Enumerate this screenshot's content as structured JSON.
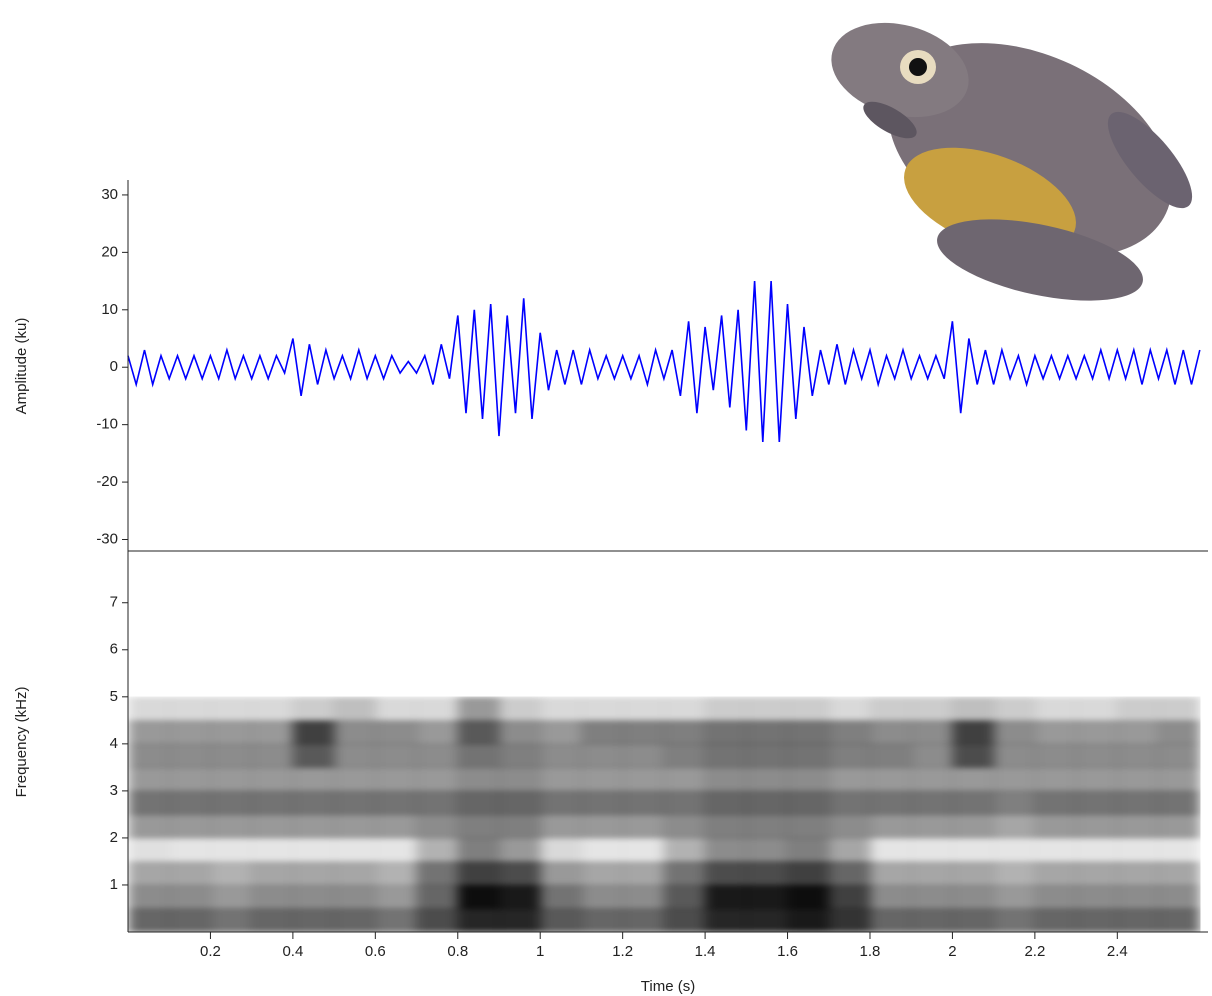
{
  "chart_data": [
    {
      "type": "line",
      "ylabel": "Amplitude (ku)",
      "color": "#0000ff",
      "xlim": [
        0,
        2.62
      ],
      "ylim": [
        -32,
        32.6
      ],
      "yticks": [
        -30,
        -20,
        -10,
        0,
        10,
        20,
        30
      ],
      "x": [
        0,
        0.02,
        0.04,
        0.06,
        0.08,
        0.1,
        0.12,
        0.14,
        0.16,
        0.18,
        0.2,
        0.22,
        0.24,
        0.26,
        0.28,
        0.3,
        0.32,
        0.34,
        0.36,
        0.38,
        0.4,
        0.42,
        0.44,
        0.46,
        0.48,
        0.5,
        0.52,
        0.54,
        0.56,
        0.58,
        0.6,
        0.62,
        0.64,
        0.66,
        0.68,
        0.7,
        0.72,
        0.74,
        0.76,
        0.78,
        0.8,
        0.82,
        0.84,
        0.86,
        0.88,
        0.9,
        0.92,
        0.94,
        0.96,
        0.98,
        1,
        1.02,
        1.04,
        1.06,
        1.08,
        1.1,
        1.12,
        1.14,
        1.16,
        1.18,
        1.2,
        1.22,
        1.24,
        1.26,
        1.28,
        1.3,
        1.32,
        1.34,
        1.36,
        1.38,
        1.4,
        1.42,
        1.44,
        1.46,
        1.48,
        1.5,
        1.52,
        1.54,
        1.56,
        1.58,
        1.6,
        1.62,
        1.64,
        1.66,
        1.68,
        1.7,
        1.72,
        1.74,
        1.76,
        1.78,
        1.8,
        1.82,
        1.84,
        1.86,
        1.88,
        1.9,
        1.92,
        1.94,
        1.96,
        1.98,
        2,
        2.02,
        2.04,
        2.06,
        2.08,
        2.1,
        2.12,
        2.14,
        2.16,
        2.18,
        2.2,
        2.22,
        2.24,
        2.26,
        2.28,
        2.3,
        2.32,
        2.34,
        2.36,
        2.38,
        2.4,
        2.42,
        2.44,
        2.46,
        2.48,
        2.5,
        2.52,
        2.54,
        2.56,
        2.58,
        2.6
      ],
      "values": [
        2,
        -3,
        3,
        -3,
        2,
        -2,
        2,
        -2,
        2,
        -2,
        2,
        -2,
        3,
        -2,
        2,
        -2,
        2,
        -2,
        2,
        -1,
        5,
        -5,
        4,
        -3,
        3,
        -2,
        2,
        -2,
        3,
        -2,
        2,
        -2,
        2,
        -1,
        1,
        -1,
        2,
        -3,
        4,
        -2,
        9,
        -8,
        10,
        -9,
        11,
        -12,
        9,
        -8,
        12,
        -9,
        6,
        -4,
        3,
        -3,
        3,
        -3,
        3,
        -2,
        2,
        -2,
        2,
        -2,
        2,
        -3,
        3,
        -2,
        3,
        -5,
        8,
        -8,
        7,
        -4,
        9,
        -7,
        10,
        -11,
        15,
        -13,
        15,
        -13,
        11,
        -9,
        7,
        -5,
        3,
        -3,
        4,
        -3,
        3,
        -2,
        3,
        -3,
        2,
        -2,
        3,
        -2,
        2,
        -2,
        2,
        -2,
        8,
        -8,
        5,
        -3,
        3,
        -3,
        3,
        -2,
        2,
        -3,
        2,
        -2,
        2,
        -2,
        2,
        -2,
        2,
        -2,
        3,
        -2,
        3,
        -2,
        3,
        -3,
        3,
        -2,
        3,
        -3,
        3,
        -3,
        3
      ]
    },
    {
      "type": "heatmap",
      "xlabel": "Time (s)",
      "ylabel": "Frequency (kHz)",
      "color": "#000000",
      "xlim": [
        0,
        2.62
      ],
      "ylim": [
        0,
        8.1
      ],
      "xticks": [
        0.2,
        0.4,
        0.6,
        0.8,
        1,
        1.2,
        1.4,
        1.6,
        1.8,
        2,
        2.2,
        2.4
      ],
      "yticks": [
        1,
        2,
        3,
        4,
        5,
        6,
        7
      ],
      "x_edges": [
        0,
        0.1,
        0.2,
        0.3,
        0.4,
        0.5,
        0.6,
        0.7,
        0.8,
        0.9,
        1,
        1.1,
        1.2,
        1.3,
        1.4,
        1.5,
        1.6,
        1.7,
        1.8,
        1.9,
        2,
        2.1,
        2.2,
        2.3,
        2.4,
        2.5,
        2.6
      ],
      "y_edges": [
        0,
        0.5,
        1,
        1.5,
        2,
        2.5,
        3,
        3.5,
        4,
        4.5,
        5
      ],
      "values": [
        [
          0.6,
          0.6,
          0.55,
          0.6,
          0.6,
          0.6,
          0.55,
          0.7,
          0.85,
          0.85,
          0.65,
          0.6,
          0.6,
          0.7,
          0.85,
          0.85,
          0.9,
          0.8,
          0.6,
          0.6,
          0.6,
          0.55,
          0.6,
          0.6,
          0.6,
          0.6
        ],
        [
          0.45,
          0.45,
          0.4,
          0.45,
          0.45,
          0.45,
          0.4,
          0.6,
          0.95,
          0.9,
          0.55,
          0.45,
          0.45,
          0.65,
          0.9,
          0.9,
          0.95,
          0.75,
          0.45,
          0.45,
          0.45,
          0.4,
          0.45,
          0.45,
          0.45,
          0.45
        ],
        [
          0.35,
          0.35,
          0.3,
          0.35,
          0.35,
          0.35,
          0.3,
          0.55,
          0.75,
          0.7,
          0.4,
          0.35,
          0.35,
          0.55,
          0.7,
          0.7,
          0.75,
          0.6,
          0.35,
          0.35,
          0.35,
          0.3,
          0.35,
          0.35,
          0.35,
          0.35
        ],
        [
          0.12,
          0.1,
          0.1,
          0.1,
          0.1,
          0.1,
          0.1,
          0.3,
          0.5,
          0.4,
          0.15,
          0.1,
          0.1,
          0.3,
          0.45,
          0.45,
          0.5,
          0.35,
          0.1,
          0.1,
          0.1,
          0.1,
          0.1,
          0.1,
          0.1,
          0.1
        ],
        [
          0.4,
          0.4,
          0.4,
          0.4,
          0.4,
          0.4,
          0.4,
          0.45,
          0.5,
          0.5,
          0.4,
          0.4,
          0.4,
          0.45,
          0.5,
          0.5,
          0.5,
          0.45,
          0.4,
          0.4,
          0.4,
          0.35,
          0.4,
          0.4,
          0.4,
          0.4
        ],
        [
          0.55,
          0.55,
          0.55,
          0.55,
          0.55,
          0.55,
          0.55,
          0.55,
          0.6,
          0.6,
          0.55,
          0.55,
          0.55,
          0.55,
          0.6,
          0.6,
          0.6,
          0.55,
          0.55,
          0.55,
          0.55,
          0.5,
          0.55,
          0.55,
          0.55,
          0.55
        ],
        [
          0.4,
          0.4,
          0.4,
          0.4,
          0.4,
          0.4,
          0.4,
          0.4,
          0.45,
          0.45,
          0.4,
          0.4,
          0.4,
          0.4,
          0.45,
          0.45,
          0.45,
          0.4,
          0.4,
          0.4,
          0.4,
          0.4,
          0.4,
          0.4,
          0.4,
          0.4
        ],
        [
          0.45,
          0.45,
          0.45,
          0.45,
          0.65,
          0.45,
          0.45,
          0.45,
          0.55,
          0.5,
          0.45,
          0.45,
          0.45,
          0.5,
          0.55,
          0.55,
          0.55,
          0.5,
          0.5,
          0.45,
          0.7,
          0.45,
          0.45,
          0.45,
          0.45,
          0.45
        ],
        [
          0.4,
          0.4,
          0.4,
          0.4,
          0.75,
          0.45,
          0.45,
          0.4,
          0.65,
          0.45,
          0.4,
          0.5,
          0.5,
          0.5,
          0.55,
          0.55,
          0.55,
          0.5,
          0.45,
          0.45,
          0.75,
          0.45,
          0.4,
          0.4,
          0.4,
          0.45
        ],
        [
          0.15,
          0.15,
          0.15,
          0.15,
          0.2,
          0.25,
          0.15,
          0.15,
          0.4,
          0.2,
          0.15,
          0.15,
          0.15,
          0.15,
          0.2,
          0.2,
          0.2,
          0.15,
          0.2,
          0.2,
          0.25,
          0.2,
          0.15,
          0.15,
          0.2,
          0.2
        ]
      ]
    }
  ]
}
